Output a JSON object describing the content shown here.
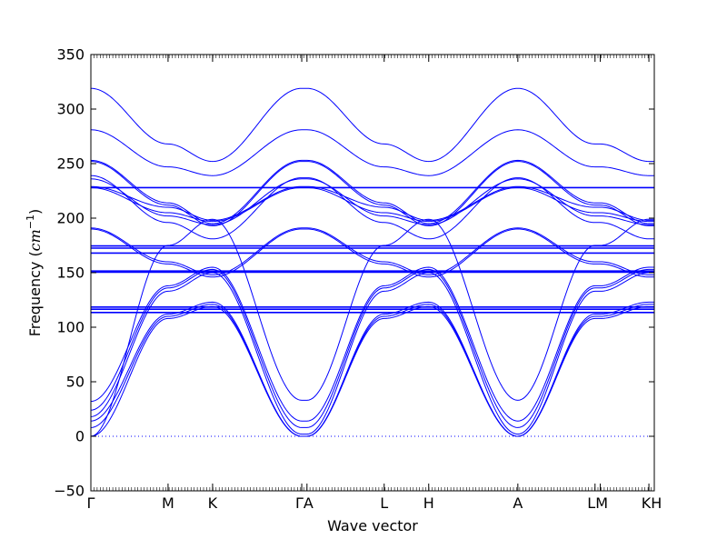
{
  "chart_data": {
    "type": "line",
    "title": "",
    "xlabel": "Wave vector",
    "ylabel_prefix": "Frequency (",
    "ylabel_unit_base": "cm",
    "ylabel_unit_exp": "−1",
    "ylabel_suffix": ")",
    "ylim": [
      -50,
      350
    ],
    "y_ticks": [
      -50,
      0,
      50,
      100,
      150,
      200,
      250,
      300,
      350
    ],
    "grid": false,
    "legend": "none",
    "line_color": "#0000ff",
    "zero_line_color": "#0000ff",
    "path_points": [
      {
        "label": "Γ",
        "x": 0.0
      },
      {
        "label": "M",
        "x": 1.0
      },
      {
        "label": "K",
        "x": 1.577
      },
      {
        "label": "Γ",
        "x": 2.732
      },
      {
        "label": "A",
        "x": 2.8
      },
      {
        "label": "L",
        "x": 3.8
      },
      {
        "label": "H",
        "x": 4.377
      },
      {
        "label": "A",
        "x": 5.532
      },
      {
        "label": "L",
        "x": 6.532
      },
      {
        "label": "M",
        "x": 6.6
      },
      {
        "label": "K",
        "x": 7.23
      },
      {
        "label": "H",
        "x": 7.3
      }
    ],
    "x_tick_labels": [
      "Γ",
      "M",
      "K",
      "ΓA",
      "L",
      "H",
      "A",
      "LM",
      "KH"
    ],
    "flat_bands": [
      113.5,
      116.5,
      118.5,
      150.5,
      151.5,
      168,
      172.5,
      174.5,
      228
    ],
    "series": [
      {
        "values": [
          0,
          108,
          119,
          0,
          0,
          108,
          119,
          0,
          108,
          108,
          119,
          119
        ]
      },
      {
        "values": [
          8,
          110,
          121,
          0,
          0,
          110,
          121,
          0,
          110,
          110,
          121,
          121
        ]
      },
      {
        "values": [
          14,
          112,
          123,
          0,
          0,
          112,
          123,
          0,
          112,
          112,
          123,
          123
        ]
      },
      {
        "values": [
          18,
          133,
          150,
          2,
          2,
          133,
          150,
          2,
          133,
          133,
          150,
          150
        ]
      },
      {
        "values": [
          24,
          136,
          153,
          8,
          8,
          136,
          153,
          8,
          136,
          136,
          153,
          153
        ]
      },
      {
        "values": [
          32,
          138,
          155,
          14,
          14,
          138,
          155,
          14,
          138,
          138,
          155,
          155
        ]
      },
      {
        "values": [
          190,
          158,
          146,
          190,
          190,
          158,
          146,
          190,
          158,
          158,
          146,
          146
        ]
      },
      {
        "values": [
          191,
          160,
          148,
          191,
          191,
          160,
          148,
          191,
          160,
          160,
          148,
          148
        ]
      },
      {
        "values": [
          0,
          175,
          199,
          33,
          33,
          175,
          199,
          33,
          175,
          175,
          199,
          199
        ]
      },
      {
        "values": [
          239,
          196,
          181,
          237,
          237,
          196,
          181,
          237,
          196,
          196,
          181,
          181
        ]
      },
      {
        "values": [
          236,
          202,
          194,
          236,
          236,
          202,
          194,
          236,
          202,
          202,
          194,
          194
        ]
      },
      {
        "values": [
          228,
          205,
          197,
          228,
          228,
          205,
          197,
          228,
          205,
          205,
          197,
          197
        ]
      },
      {
        "values": [
          229,
          210,
          198,
          229,
          229,
          210,
          198,
          229,
          210,
          210,
          198,
          198
        ]
      },
      {
        "values": [
          252,
          212,
          193,
          252,
          252,
          212,
          193,
          252,
          212,
          212,
          193,
          193
        ]
      },
      {
        "values": [
          253,
          214,
          195,
          253,
          253,
          214,
          195,
          253,
          214,
          214,
          195,
          195
        ]
      },
      {
        "values": [
          281,
          247,
          239,
          281,
          281,
          247,
          239,
          281,
          247,
          247,
          239,
          239
        ]
      },
      {
        "values": [
          319,
          268,
          252,
          319,
          319,
          268,
          252,
          319,
          268,
          268,
          252,
          252
        ]
      }
    ]
  }
}
